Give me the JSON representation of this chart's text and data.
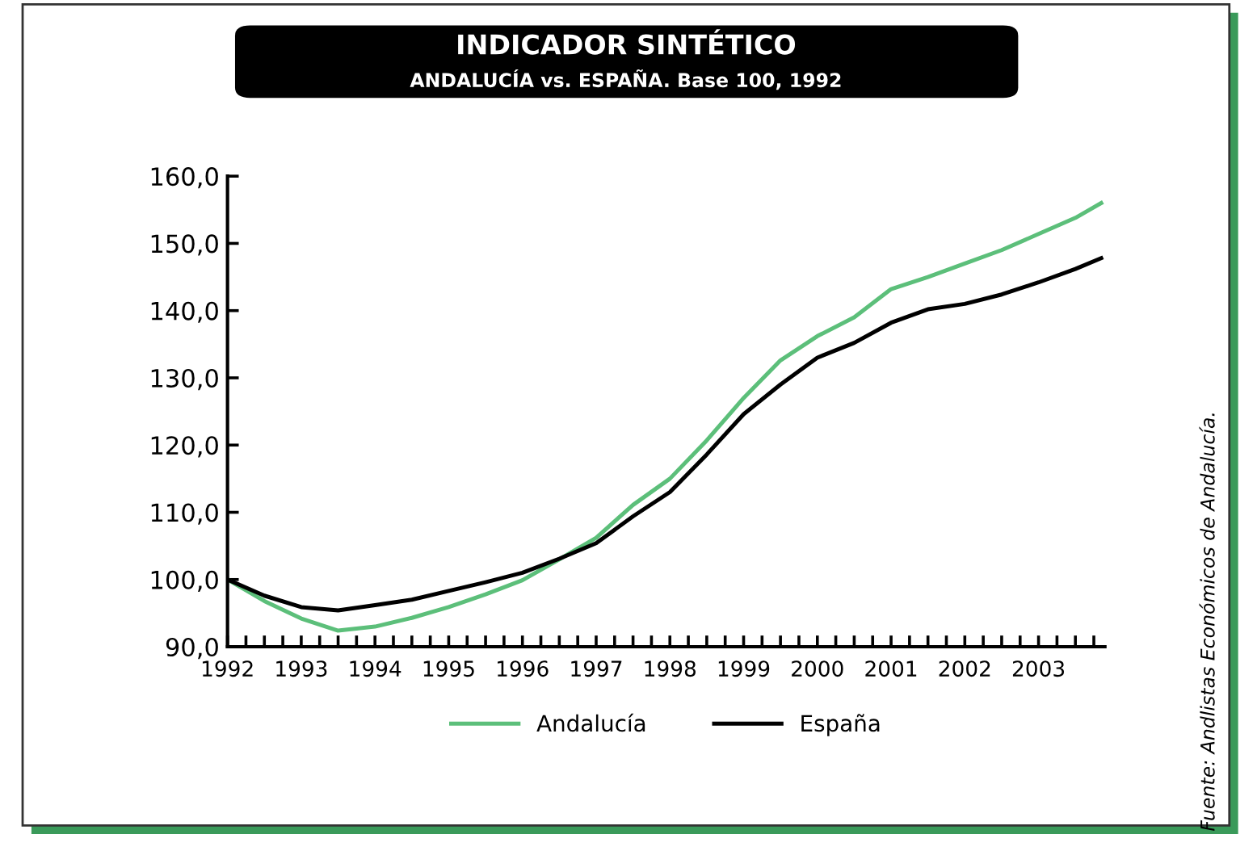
{
  "chart_data": {
    "type": "line",
    "title": "INDICADOR SINTÉTICO",
    "subtitle": "ANDALUCÍA vs. ESPAÑA. Base 100, 1992",
    "x": [
      1992,
      1992.5,
      1993,
      1993.5,
      1994,
      1994.5,
      1995,
      1995.5,
      1996,
      1996.5,
      1997,
      1997.5,
      1998,
      1998.5,
      1999,
      1999.5,
      2000,
      2000.5,
      2001,
      2001.5,
      2002,
      2002.5,
      2003,
      2003.5,
      2003.85
    ],
    "series": [
      {
        "name": "Andalucía",
        "color": "#5cbf7a",
        "values": [
          100,
          96.8,
          94.2,
          92.4,
          93.0,
          94.3,
          95.9,
          97.8,
          99.9,
          103.0,
          106.2,
          111.1,
          115.0,
          120.7,
          127.0,
          132.6,
          136.2,
          139.0,
          143.2,
          145.0,
          147.0,
          149.0,
          151.4,
          153.8,
          156.0
        ]
      },
      {
        "name": "España",
        "color": "#000000",
        "values": [
          100,
          97.6,
          95.9,
          95.4,
          96.2,
          97.0,
          98.3,
          99.6,
          101.0,
          103.1,
          105.4,
          109.4,
          113.0,
          118.6,
          124.6,
          129.0,
          133.0,
          135.2,
          138.2,
          140.2,
          141.0,
          142.4,
          144.2,
          146.2,
          147.8
        ]
      }
    ],
    "xlim": [
      1992,
      2003.9
    ],
    "xticks": [
      1992,
      1993,
      1994,
      1995,
      1996,
      1997,
      1998,
      1999,
      2000,
      2001,
      2002,
      2003
    ],
    "ylim": [
      90,
      160
    ],
    "yticks": [
      {
        "value": 90,
        "label": "90,0"
      },
      {
        "value": 100,
        "label": "100,0"
      },
      {
        "value": 110,
        "label": "110,0"
      },
      {
        "value": 120,
        "label": "120,0"
      },
      {
        "value": 130,
        "label": "130,0"
      },
      {
        "value": 140,
        "label": "140,0"
      },
      {
        "value": 150,
        "label": "150,0"
      },
      {
        "value": 160,
        "label": "160,0"
      }
    ],
    "grid": false,
    "legend": "bottom",
    "marker": "none",
    "line_style": "solid",
    "annotations": [
      "Fuente: Andlistas Económicos de Andalucía."
    ]
  }
}
